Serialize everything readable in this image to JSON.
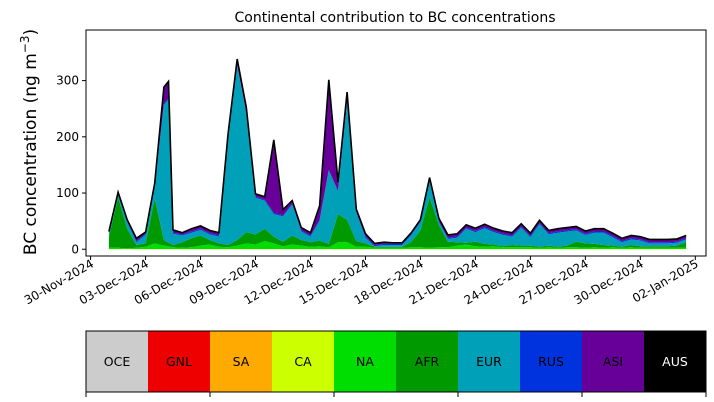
{
  "chart_data": {
    "type": "area",
    "stacked": true,
    "title": "Continental contribution to BC concentrations",
    "ylabel": "BC concentration (ng m",
    "ylabel_superscript": "−3",
    "ylabel_close": ")",
    "xlabel": "",
    "ylim": [
      -12,
      390
    ],
    "xlim": [
      "2024-11-29T18:00",
      "2025-01-02T14:00"
    ],
    "x_ticks": [
      "30-Nov-2024",
      "03-Dec-2024",
      "06-Dec-2024",
      "09-Dec-2024",
      "12-Dec-2024",
      "15-Dec-2024",
      "18-Dec-2024",
      "21-Dec-2024",
      "24-Dec-2024",
      "27-Dec-2024",
      "30-Dec-2024",
      "02-Jan-2025"
    ],
    "y_ticks": [
      0,
      100,
      200,
      300
    ],
    "legend_position": "bottom",
    "x": [
      "2024-12-01T00:00",
      "2024-12-01T12:00",
      "2024-12-02T00:00",
      "2024-12-02T12:00",
      "2024-12-03T00:00",
      "2024-12-03T12:00",
      "2024-12-04T00:00",
      "2024-12-04T06:00",
      "2024-12-04T12:00",
      "2024-12-05T00:00",
      "2024-12-05T12:00",
      "2024-12-06T00:00",
      "2024-12-06T12:00",
      "2024-12-07T00:00",
      "2024-12-07T12:00",
      "2024-12-08T00:00",
      "2024-12-08T12:00",
      "2024-12-09T00:00",
      "2024-12-09T12:00",
      "2024-12-10T00:00",
      "2024-12-10T12:00",
      "2024-12-11T00:00",
      "2024-12-11T12:00",
      "2024-12-12T00:00",
      "2024-12-12T12:00",
      "2024-12-13T00:00",
      "2024-12-13T12:00",
      "2024-12-14T00:00",
      "2024-12-14T12:00",
      "2024-12-15T00:00",
      "2024-12-15T12:00",
      "2024-12-16T00:00",
      "2024-12-16T12:00",
      "2024-12-17T00:00",
      "2024-12-17T12:00",
      "2024-12-18T00:00",
      "2024-12-18T12:00",
      "2024-12-19T00:00",
      "2024-12-19T12:00",
      "2024-12-20T00:00",
      "2024-12-20T12:00",
      "2024-12-21T00:00",
      "2024-12-21T12:00",
      "2024-12-22T00:00",
      "2024-12-22T12:00",
      "2024-12-23T00:00",
      "2024-12-23T12:00",
      "2024-12-24T00:00",
      "2024-12-24T12:00",
      "2024-12-25T00:00",
      "2024-12-25T12:00",
      "2024-12-26T00:00",
      "2024-12-26T12:00",
      "2024-12-27T00:00",
      "2024-12-27T12:00",
      "2024-12-28T00:00",
      "2024-12-28T12:00",
      "2024-12-29T00:00",
      "2024-12-29T12:00",
      "2024-12-30T00:00",
      "2024-12-30T12:00",
      "2024-12-31T00:00",
      "2024-12-31T12:00",
      "2025-01-01T00:00",
      "2025-01-01T12:00"
    ],
    "series": [
      {
        "name": "OCE",
        "color": "#cccccc",
        "values": [
          0,
          0,
          0,
          0,
          0,
          0,
          0,
          0,
          0,
          0,
          0,
          0,
          0,
          0,
          0,
          0,
          0,
          0,
          0,
          0,
          0,
          0,
          0,
          0,
          0,
          0,
          0,
          0,
          0,
          0,
          0,
          0,
          0,
          0,
          0,
          0,
          0,
          0,
          0,
          0,
          0,
          0,
          0,
          0,
          0,
          0,
          0,
          0,
          0,
          0,
          0,
          0,
          0,
          0,
          0,
          0,
          0,
          0,
          0,
          0,
          0,
          0,
          0,
          0,
          0
        ]
      },
      {
        "name": "GNL",
        "color": "#ee0000",
        "values": [
          0,
          0,
          0,
          0,
          0,
          0,
          0,
          0,
          0,
          0,
          0,
          0,
          0,
          0,
          0,
          0,
          0,
          0,
          0,
          0,
          0,
          0,
          0,
          0,
          0,
          0,
          0,
          0,
          0,
          0,
          0,
          0,
          0,
          0,
          0,
          0,
          0,
          0,
          0,
          0,
          0,
          0,
          0,
          0,
          0,
          0,
          0,
          0,
          0,
          0,
          0,
          0,
          0,
          0,
          0,
          0,
          0,
          0,
          0,
          0,
          0,
          0,
          0,
          0,
          0
        ]
      },
      {
        "name": "SA",
        "color": "#ffaa00",
        "values": [
          0,
          0,
          0,
          0,
          0,
          0,
          0,
          0,
          0,
          0,
          0,
          0,
          0,
          0,
          0,
          0,
          0,
          0,
          0,
          0,
          0,
          0,
          0,
          0,
          0,
          0,
          0,
          0,
          0,
          0,
          0,
          0,
          0,
          0,
          0,
          0,
          0,
          0,
          0,
          0,
          0,
          0,
          0,
          0,
          0,
          0,
          0,
          0,
          0,
          0,
          0,
          0,
          0,
          0,
          0,
          0,
          0,
          0,
          0,
          0,
          0,
          0,
          0,
          0,
          0
        ]
      },
      {
        "name": "CA",
        "color": "#ccff00",
        "values": [
          0.5,
          0.5,
          0.5,
          0.5,
          0.5,
          0.5,
          0.5,
          0.5,
          0.5,
          0.5,
          0.5,
          0.5,
          0.5,
          0.5,
          0.5,
          0.5,
          0.5,
          0.5,
          0.5,
          0.5,
          0.5,
          0.5,
          0.5,
          0.5,
          0.5,
          0.5,
          0.5,
          0.5,
          0.5,
          0.5,
          0.5,
          0.5,
          0.5,
          0.5,
          0.5,
          0.5,
          0.5,
          0.5,
          0.5,
          0.5,
          0.5,
          0.5,
          0.5,
          0.5,
          0.5,
          0.5,
          0.5,
          0.5,
          0.5,
          0.5,
          0.5,
          0.5,
          0.5,
          0.5,
          0.5,
          0.5,
          0.5,
          0.5,
          0.5,
          0.5,
          0.5,
          0.5,
          0.5,
          0.5,
          0.5
        ]
      },
      {
        "name": "NA",
        "color": "#00dd00",
        "values": [
          2,
          2,
          1,
          2,
          4,
          10,
          6,
          5,
          3,
          2,
          3,
          6,
          8,
          4,
          3,
          6,
          10,
          8,
          14,
          10,
          5,
          8,
          6,
          4,
          5,
          3,
          12,
          12,
          4,
          4,
          2,
          2,
          2,
          2,
          3,
          3,
          2,
          3,
          3,
          6,
          8,
          5,
          4,
          5,
          3,
          3,
          3,
          3,
          2,
          3,
          2,
          3,
          3,
          2,
          3,
          2,
          3,
          2,
          3,
          2,
          2,
          2,
          2,
          2,
          2
        ]
      },
      {
        "name": "AFR",
        "color": "#009900",
        "values": [
          20,
          90,
          35,
          5,
          6,
          80,
          10,
          6,
          4,
          10,
          16,
          18,
          8,
          6,
          4,
          10,
          20,
          18,
          22,
          12,
          8,
          16,
          10,
          8,
          10,
          6,
          50,
          40,
          10,
          6,
          2,
          2,
          2,
          2,
          10,
          30,
          90,
          40,
          10,
          6,
          3,
          8,
          5,
          3,
          2,
          4,
          3,
          3,
          2,
          3,
          2,
          3,
          10,
          8,
          6,
          5,
          3,
          2,
          4,
          3,
          3,
          3,
          3,
          4,
          10
        ]
      },
      {
        "name": "EUR",
        "color": "#00a0b8",
        "values": [
          5,
          5,
          12,
          5,
          15,
          20,
          240,
          255,
          20,
          12,
          10,
          10,
          10,
          12,
          190,
          310,
          210,
          65,
          50,
          40,
          45,
          55,
          15,
          10,
          35,
          130,
          40,
          210,
          50,
          10,
          1,
          3,
          3,
          3,
          12,
          15,
          30,
          5,
          5,
          8,
          25,
          17,
          28,
          22,
          20,
          15,
          32,
          15,
          40,
          20,
          25,
          25,
          20,
          15,
          20,
          22,
          15,
          8,
          10,
          10,
          5,
          5,
          5,
          5,
          5
        ]
      },
      {
        "name": "RUS",
        "color": "#0033dd",
        "values": [
          2,
          2,
          2,
          2,
          2,
          2,
          2,
          2,
          2,
          2,
          2,
          2,
          2,
          2,
          2,
          2,
          2,
          2,
          2,
          2,
          2,
          2,
          2,
          2,
          2,
          2,
          2,
          2,
          2,
          2,
          2,
          2,
          2,
          2,
          2,
          2,
          2,
          2,
          2,
          2,
          2,
          2,
          2,
          2,
          2,
          2,
          2,
          2,
          2,
          2,
          2,
          2,
          2,
          2,
          2,
          2,
          2,
          2,
          2,
          2,
          2,
          2,
          2,
          2,
          2
        ]
      },
      {
        "name": "ASI",
        "color": "#660099",
        "values": [
          2,
          2,
          2,
          5,
          3,
          5,
          30,
          30,
          5,
          3,
          5,
          5,
          5,
          5,
          5,
          10,
          10,
          5,
          5,
          130,
          10,
          5,
          5,
          5,
          25,
          160,
          15,
          15,
          5,
          5,
          3,
          3,
          2,
          2,
          2,
          2,
          3,
          5,
          5,
          5,
          5,
          5,
          5,
          5,
          5,
          5,
          5,
          5,
          5,
          5,
          5,
          5,
          5,
          5,
          5,
          5,
          5,
          5,
          5,
          5,
          5,
          5,
          5,
          5,
          5
        ]
      },
      {
        "name": "AUS",
        "color": "#000000",
        "values": [
          0,
          0,
          0,
          0,
          0,
          0,
          0,
          0,
          0,
          0,
          0,
          0,
          0,
          0,
          0,
          0,
          0,
          0,
          0,
          0,
          0,
          0,
          0,
          0,
          0,
          0,
          0,
          0,
          0,
          0,
          0,
          0,
          0,
          0,
          0,
          0,
          0,
          0,
          0,
          0,
          0,
          0,
          0,
          0,
          0,
          0,
          0,
          0,
          0,
          0,
          0,
          0,
          0,
          0,
          0,
          0,
          0,
          0,
          0,
          0,
          0,
          0,
          0,
          0,
          0
        ]
      }
    ],
    "legend_entries": [
      {
        "name": "OCE",
        "color": "#cccccc",
        "text_color": "#000000"
      },
      {
        "name": "GNL",
        "color": "#ee0000",
        "text_color": "#000000"
      },
      {
        "name": "SA",
        "color": "#ffaa00",
        "text_color": "#000000"
      },
      {
        "name": "CA",
        "color": "#ccff00",
        "text_color": "#000000"
      },
      {
        "name": "NA",
        "color": "#00dd00",
        "text_color": "#000000"
      },
      {
        "name": "AFR",
        "color": "#009900",
        "text_color": "#000000"
      },
      {
        "name": "EUR",
        "color": "#00a0b8",
        "text_color": "#000000"
      },
      {
        "name": "RUS",
        "color": "#0033dd",
        "text_color": "#000000"
      },
      {
        "name": "ASI",
        "color": "#660099",
        "text_color": "#000000"
      },
      {
        "name": "AUS",
        "color": "#000000",
        "text_color": "#ffffff"
      }
    ]
  }
}
